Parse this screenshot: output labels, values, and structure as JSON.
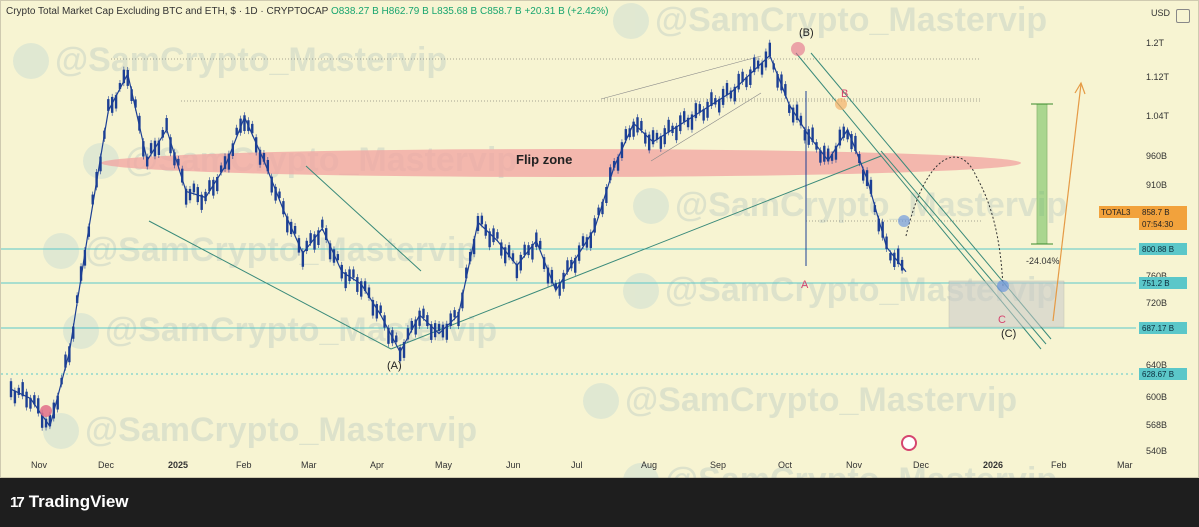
{
  "header": {
    "title": "Crypto Total Market Cap Excluding BTC and ETH, $ · 1D · CRYPTOCAP",
    "open": "O838.27 B",
    "high": "H862.79 B",
    "low": "L835.68 B",
    "close": "C858.7 B",
    "change": "+20.31 B (+2.42%)"
  },
  "currency": "USD",
  "watermark": "@SamCrypto_Mastervip",
  "footer": {
    "brand": "TradingView"
  },
  "colors": {
    "background": "#f7f4d2",
    "candles": "#1c3f94",
    "support": "#5bc7c9",
    "flip_zone": "#f1a3a0",
    "target_box": "#6cbf5a",
    "arrow": "#e59a45"
  },
  "chart_data": {
    "type": "line",
    "x_ticks": [
      "Nov",
      "Dec",
      "2025",
      "Feb",
      "Mar",
      "Apr",
      "May",
      "Jun",
      "Jul",
      "Aug",
      "Sep",
      "Oct",
      "Nov",
      "Dec",
      "2026",
      "Feb",
      "Mar"
    ],
    "y_ticks": [
      "1.2T",
      "1.12T",
      "1.04T",
      "960B",
      "910B",
      "760B",
      "720B",
      "640B",
      "600B",
      "568B",
      "540B"
    ],
    "series": [
      {
        "values": [
          640,
          625,
          580,
          700,
          900,
          1090,
          1150,
          1010,
          1060,
          960,
          950,
          1000,
          1080,
          1010,
          930,
          860,
          900,
          830,
          810,
          760,
          700,
          760,
          730,
          760,
          910,
          880,
          840,
          880,
          800,
          850,
          900,
          1000,
          1070,
          1040,
          1060,
          1080,
          1100,
          1120,
          1150,
          1180,
          1100,
          1050,
          1010,
          1060,
          980,
          870,
          830
        ]
      }
    ],
    "price_labels": [
      {
        "label": "TOTAL3",
        "value": "858.7 B",
        "time": "07:54:30"
      },
      {
        "value": "800.88 B"
      },
      {
        "value": "751.2 B"
      },
      {
        "value": "687.17 B"
      },
      {
        "value": "628.67 B"
      }
    ],
    "annotations": {
      "zone": "Flip zone",
      "wave_A": "(A)",
      "wave_B": "(B)",
      "wave_C": "(C)",
      "mark_A": "A",
      "mark_B": "B",
      "mark_C": "C",
      "drop": "-24.04%"
    },
    "grid": false,
    "legend": "none"
  }
}
